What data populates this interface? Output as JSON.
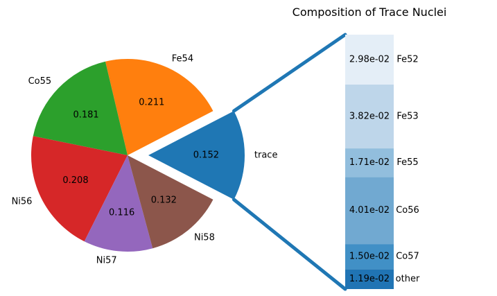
{
  "chart_data": [
    {
      "type": "pie",
      "title": "",
      "slices": [
        {
          "label": "trace",
          "value": 0.152,
          "value_label": "0.152",
          "color": "#1f77b4",
          "exploded": true
        },
        {
          "label": "Fe54",
          "value": 0.211,
          "value_label": "0.211",
          "color": "#ff7f0e",
          "exploded": false
        },
        {
          "label": "Co55",
          "value": 0.181,
          "value_label": "0.181",
          "color": "#2ca02c",
          "exploded": false
        },
        {
          "label": "Ni56",
          "value": 0.208,
          "value_label": "0.208",
          "color": "#d62728",
          "exploded": false
        },
        {
          "label": "Ni57",
          "value": 0.116,
          "value_label": "0.116",
          "color": "#9467bd",
          "exploded": false
        },
        {
          "label": "Ni58",
          "value": 0.132,
          "value_label": "0.132",
          "color": "#8c564b",
          "exploded": false
        }
      ]
    },
    {
      "type": "bar",
      "stacked": true,
      "title": "Composition of Trace Nuclei",
      "segments": [
        {
          "label": "other",
          "value": 0.0119,
          "value_label": "1.19e-02",
          "color": "#2074b4"
        },
        {
          "label": "Co57",
          "value": 0.015,
          "value_label": "1.50e-02",
          "color": "#4190c6"
        },
        {
          "label": "Co56",
          "value": 0.0401,
          "value_label": "4.01e-02",
          "color": "#71a9d1"
        },
        {
          "label": "Fe55",
          "value": 0.0171,
          "value_label": "1.71e-02",
          "color": "#92bedd"
        },
        {
          "label": "Fe53",
          "value": 0.0382,
          "value_label": "3.82e-02",
          "color": "#bed6ea"
        },
        {
          "label": "Fe52",
          "value": 0.0298,
          "value_label": "2.98e-02",
          "color": "#e4eef7"
        }
      ],
      "connector_color": "#1f77b4"
    }
  ]
}
